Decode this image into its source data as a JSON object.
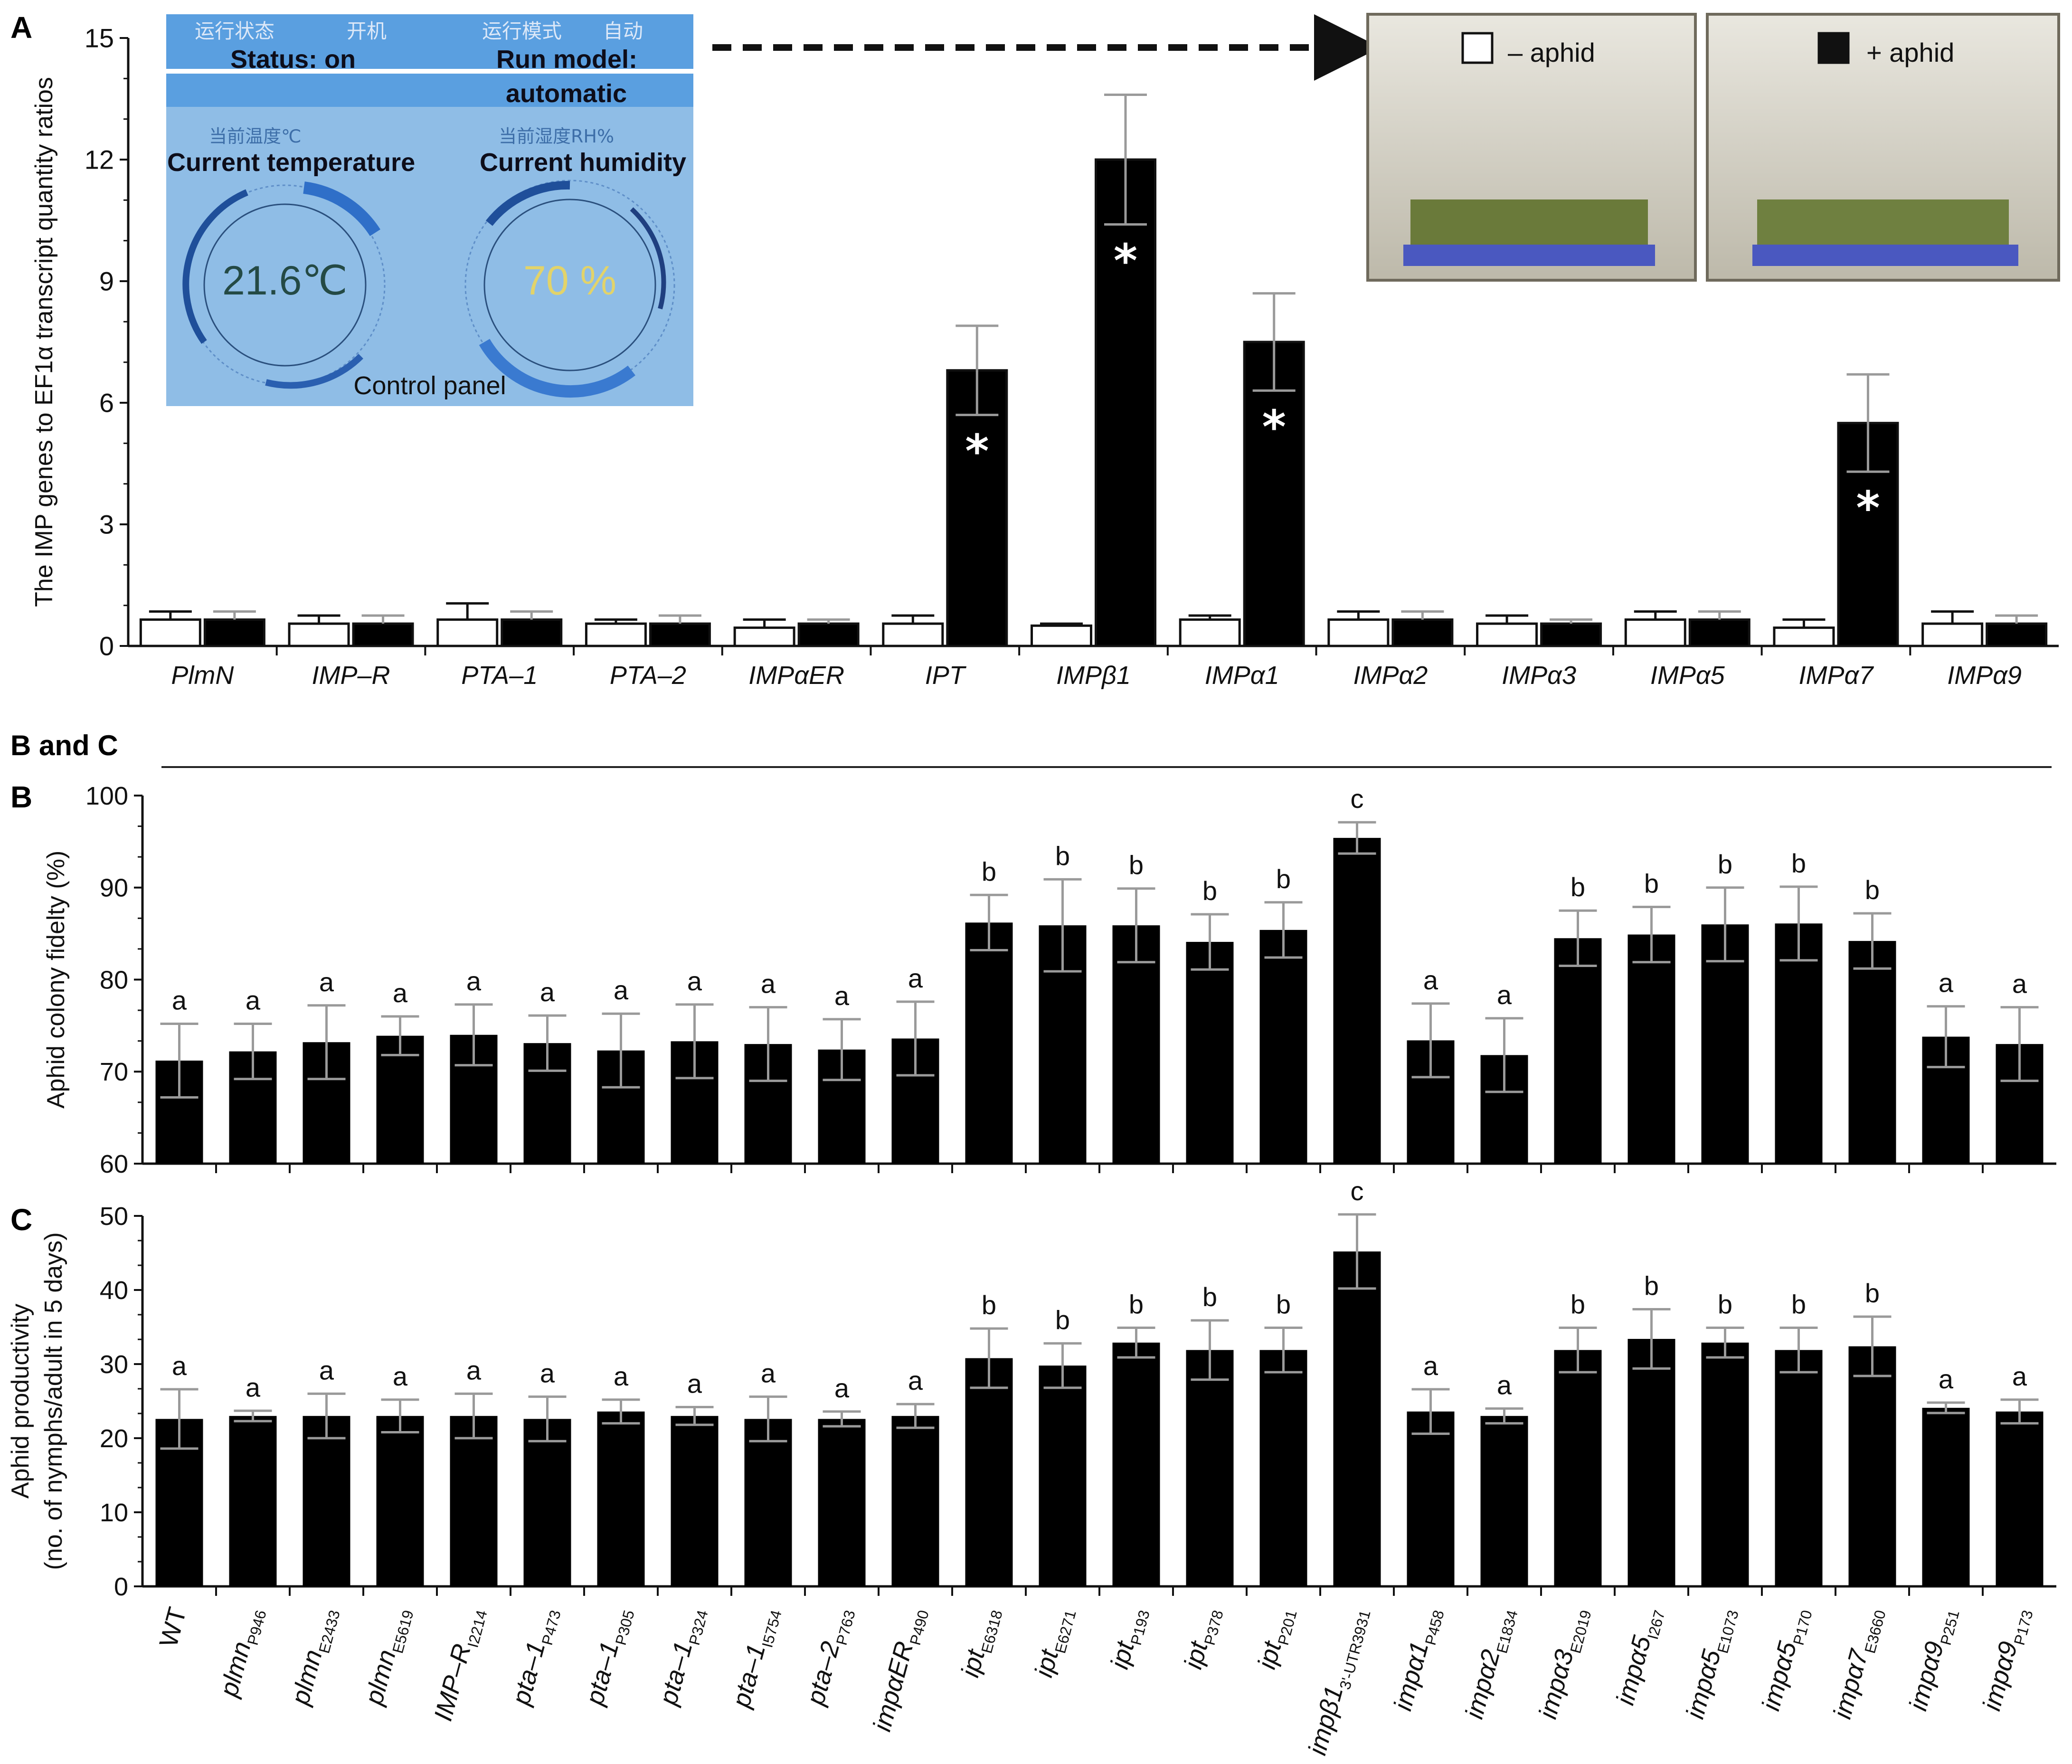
{
  "figure": {
    "panel_a_letter": "A",
    "panel_bc_heading": "B and C",
    "panel_b_letter": "B",
    "panel_c_letter": "C"
  },
  "control_panel": {
    "status_cn": "运行状态",
    "status_cn_value": "开机",
    "status_en": "Status: on",
    "run_cn": "运行模式",
    "run_cn_value": "自动",
    "run_en_line1": "Run model:",
    "run_en_line2": "automatic",
    "temp_cn": "当前温度℃",
    "temp_en": "Current temperature",
    "temp_value": "21.6℃",
    "hum_cn": "当前湿度RH%",
    "hum_en": "Current humidity",
    "hum_value": "70 %",
    "caption": "Control panel",
    "colors": {
      "background": "#8fbde6",
      "band": "#5a9fe0",
      "ring": "#1f4f9a",
      "temp_text": "#244a45",
      "hum_text": "#e2d36a"
    }
  },
  "photos": {
    "left_legend": "– aphid",
    "right_legend": "+ aphid"
  },
  "chart_data": [
    {
      "type": "bar",
      "panel": "A",
      "ylabel": "The IMP genes to EF1α transcript quantity ratios",
      "ylim": [
        0,
        15
      ],
      "yticks": [
        0,
        3,
        6,
        9,
        12,
        15
      ],
      "categories": [
        "PlmN",
        "IMP–R",
        "PTA–1",
        "PTA–2",
        "IMPαER",
        "IPT",
        "IMPβ1",
        "IMPα1",
        "IMPα2",
        "IMPα3",
        "IMPα5",
        "IMPα7",
        "IMPα9"
      ],
      "series": [
        {
          "name": "– aphid",
          "color": "#ffffff",
          "values": [
            0.65,
            0.55,
            0.65,
            0.55,
            0.45,
            0.55,
            0.5,
            0.65,
            0.65,
            0.55,
            0.65,
            0.45,
            0.55
          ],
          "errors": [
            0.2,
            0.2,
            0.4,
            0.1,
            0.2,
            0.2,
            0.05,
            0.1,
            0.2,
            0.2,
            0.2,
            0.2,
            0.3
          ]
        },
        {
          "name": "+ aphid",
          "color": "#000000",
          "values": [
            0.65,
            0.55,
            0.65,
            0.55,
            0.55,
            6.8,
            12.0,
            7.5,
            0.65,
            0.55,
            0.65,
            5.5,
            0.55
          ],
          "errors": [
            0.2,
            0.2,
            0.2,
            0.2,
            0.1,
            1.1,
            1.6,
            1.2,
            0.2,
            0.1,
            0.2,
            1.2,
            0.2
          ]
        }
      ],
      "significance": [
        "",
        "",
        "",
        "",
        "",
        "*",
        "*",
        "*",
        "",
        "",
        "",
        "*",
        ""
      ],
      "legend": "photo-insets"
    },
    {
      "type": "bar",
      "panel": "B",
      "ylabel": "Aphid colony fidelty (%)",
      "ylim": [
        60,
        100
      ],
      "yticks": [
        60,
        70,
        80,
        90,
        100
      ],
      "categories": [
        "WT",
        "plmn_P946",
        "plmn_E2433",
        "plmn_E5619",
        "IMP–R_I2214",
        "pta–1_P473",
        "pta–1_P305",
        "pta–1_P324",
        "pta–1_I5754",
        "pta–2_P763",
        "impαER_P490",
        "ipt_E6318",
        "ipt_E6271",
        "ipt_P193",
        "ipt_P378",
        "ipt_P201",
        "impβ1_3'-UTR3931",
        "impα1_P458",
        "impα2_E1834",
        "impα3_E2019",
        "impα5_I267",
        "impα5_E1073",
        "impα5_P170",
        "impα7_E3660",
        "impα9_P251",
        "impα9_P173"
      ],
      "values": [
        71.2,
        72.2,
        73.2,
        73.9,
        74.0,
        73.1,
        72.3,
        73.3,
        73.0,
        72.4,
        73.6,
        86.2,
        85.9,
        85.9,
        84.1,
        85.4,
        95.4,
        73.4,
        71.8,
        84.5,
        84.9,
        86.0,
        86.1,
        84.2,
        73.8,
        73.0
      ],
      "errors": [
        4.0,
        3.0,
        4.0,
        2.1,
        3.3,
        3.0,
        4.0,
        4.0,
        4.0,
        3.3,
        4.0,
        3.0,
        5.0,
        4.0,
        3.0,
        3.0,
        1.7,
        4.0,
        4.0,
        3.0,
        3.0,
        4.0,
        4.0,
        3.0,
        3.3,
        4.0
      ],
      "letters": [
        "a",
        "a",
        "a",
        "a",
        "a",
        "a",
        "a",
        "a",
        "a",
        "a",
        "a",
        "b",
        "b",
        "b",
        "b",
        "b",
        "c",
        "a",
        "a",
        "b",
        "b",
        "b",
        "b",
        "b",
        "a",
        "a"
      ]
    },
    {
      "type": "bar",
      "panel": "C",
      "ylabel": [
        "Aphid productivity",
        "(no. of nymphs/adult in 5 days)"
      ],
      "ylim": [
        0,
        50
      ],
      "yticks": [
        0,
        10,
        20,
        30,
        40,
        50
      ],
      "categories": [
        "WT",
        "plmn_P946",
        "plmn_E2433",
        "plmn_E5619",
        "IMP–R_I2214",
        "pta–1_P473",
        "pta–1_P305",
        "pta–1_P324",
        "pta–1_I5754",
        "pta–2_P763",
        "impαER_P490",
        "ipt_E6318",
        "ipt_E6271",
        "ipt_P193",
        "ipt_P378",
        "ipt_P201",
        "impβ1_3'-UTR3931",
        "impα1_P458",
        "impα2_E1834",
        "impα3_E2019",
        "impα5_I267",
        "impα5_E1073",
        "impα5_P170",
        "impα7_E3660",
        "impα9_P251",
        "impα9_P173"
      ],
      "values": [
        22.6,
        23.0,
        23.0,
        23.0,
        23.0,
        22.6,
        23.6,
        23.0,
        22.6,
        22.6,
        23.0,
        30.8,
        29.8,
        32.9,
        31.9,
        31.9,
        45.2,
        23.6,
        23.0,
        31.9,
        33.4,
        32.9,
        31.9,
        32.4,
        24.1,
        23.6
      ],
      "errors": [
        4.0,
        0.7,
        3.0,
        2.2,
        3.0,
        3.0,
        1.6,
        1.2,
        3.0,
        1.0,
        1.6,
        4.0,
        3.0,
        2.0,
        4.0,
        3.0,
        5.0,
        3.0,
        1.0,
        3.0,
        4.0,
        2.0,
        3.0,
        4.0,
        0.7,
        1.6
      ],
      "letters": [
        "a",
        "a",
        "a",
        "a",
        "a",
        "a",
        "a",
        "a",
        "a",
        "a",
        "a",
        "b",
        "b",
        "b",
        "b",
        "b",
        "c",
        "a",
        "a",
        "b",
        "b",
        "b",
        "b",
        "b",
        "a",
        "a"
      ]
    }
  ]
}
